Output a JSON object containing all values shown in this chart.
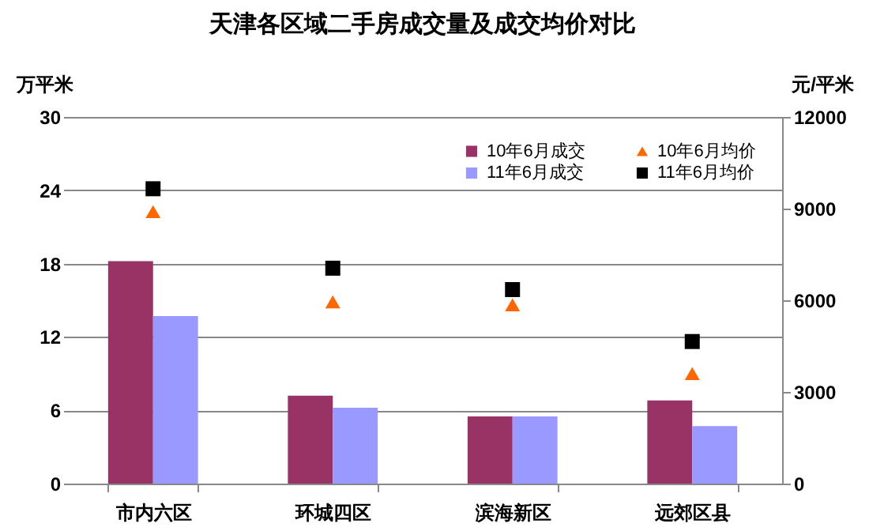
{
  "chart_data": {
    "type": "bar",
    "title": "天津各区域二手房成交量及成交均价对比",
    "ylabel": "万平米",
    "y2label": "元/平米",
    "categories": [
      "市内六区",
      "环城四区",
      "滨海新区",
      "远郊区县"
    ],
    "series": [
      {
        "name": "10年6月成交",
        "color": "#993366",
        "values": [
          18.2,
          7.2,
          5.5,
          6.8
        ]
      },
      {
        "name": "11年6月成交",
        "color": "#9999ff",
        "values": [
          13.7,
          6.2,
          5.5,
          4.7
        ]
      },
      {
        "name": "10年6月均价",
        "color": "#ff6600",
        "type": "scatter",
        "axis": "y2",
        "marker": "triangle",
        "values": [
          8900,
          5950,
          5850,
          3600
        ]
      },
      {
        "name": "11年6月均价",
        "color": "#000000",
        "type": "scatter",
        "axis": "y2",
        "marker": "square",
        "values": [
          9650,
          7050,
          6350,
          4650
        ]
      }
    ],
    "ylim": [
      0,
      30
    ],
    "yticks": [
      0,
      6,
      12,
      18,
      24,
      30
    ],
    "y2lim": [
      0,
      12000
    ],
    "y2ticks": [
      0,
      3000,
      6000,
      9000,
      12000
    ],
    "grid": "y",
    "legend": "top right"
  }
}
